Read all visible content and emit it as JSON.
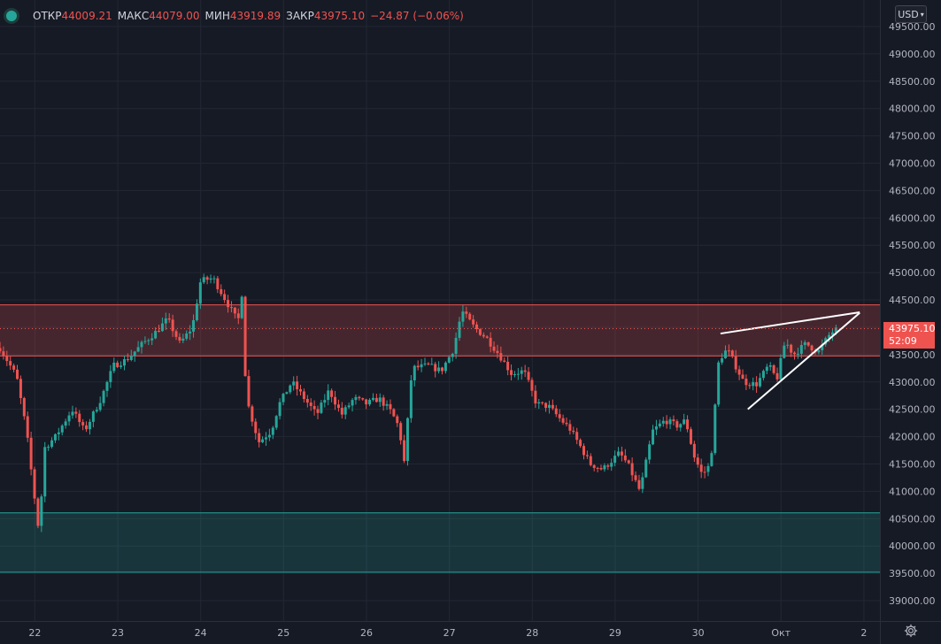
{
  "header": {
    "open_label": "ОТКР",
    "open_value": "44009.21",
    "high_label": "МАКС",
    "high_value": "44079.00",
    "low_label": "МИН",
    "low_value": "43919.89",
    "close_label": "ЗАКР",
    "close_value": "43975.10",
    "change": "−24.87 (−0.06%)"
  },
  "currency_button": "USD",
  "current_price": {
    "value": "43975.10",
    "countdown": "52:09"
  },
  "icons": {
    "status": "status-dot-icon",
    "currency": "chevron-down-icon",
    "settings": "gear-icon"
  },
  "colors": {
    "background": "#161a25",
    "up": "#26a69a",
    "down": "#ef5350",
    "resistance_zone": "#ef5350",
    "support_zone": "#26a69a",
    "trendline": "#ffffff"
  },
  "chart_data": {
    "type": "candlestick",
    "y_axis": {
      "min": 38800,
      "max": 49600,
      "ticks": [
        "39000.00",
        "39500.00",
        "40000.00",
        "40500.00",
        "41000.00",
        "41500.00",
        "42000.00",
        "42500.00",
        "43000.00",
        "43500.00",
        "44000.00",
        "44500.00",
        "45000.00",
        "45500.00",
        "46000.00",
        "46500.00",
        "47000.00",
        "47500.00",
        "48000.00",
        "48500.00",
        "49000.00",
        "49500.00"
      ]
    },
    "x_axis": {
      "labels": [
        "22",
        "23",
        "24",
        "25",
        "26",
        "27",
        "28",
        "29",
        "30",
        "Окт",
        "2"
      ],
      "start": 21.58,
      "end": 32.93
    },
    "grid": true,
    "zones": [
      {
        "name": "resistance",
        "from": 43475,
        "to": 44410
      },
      {
        "name": "support",
        "from": 39520,
        "to": 40605
      }
    ],
    "trendlines": [
      {
        "x1": 30.27,
        "y1": 43885,
        "x2": 31.95,
        "y2": 44275
      },
      {
        "x1": 30.6,
        "y1": 42500,
        "x2": 31.95,
        "y2": 44265
      }
    ],
    "anchors": [
      [
        21.58,
        43620
      ],
      [
        21.78,
        43100
      ],
      [
        21.9,
        42100
      ],
      [
        21.97,
        41200
      ],
      [
        22.05,
        40250
      ],
      [
        22.12,
        41800
      ],
      [
        22.25,
        42000
      ],
      [
        22.45,
        42500
      ],
      [
        22.6,
        42100
      ],
      [
        22.8,
        42700
      ],
      [
        22.95,
        43300
      ],
      [
        23.1,
        43400
      ],
      [
        23.3,
        43700
      ],
      [
        23.45,
        43900
      ],
      [
        23.6,
        44150
      ],
      [
        23.75,
        43700
      ],
      [
        23.9,
        44000
      ],
      [
        24.0,
        44850
      ],
      [
        24.15,
        44900
      ],
      [
        24.3,
        44500
      ],
      [
        24.45,
        44100
      ],
      [
        24.5,
        44650
      ],
      [
        24.55,
        42700
      ],
      [
        24.7,
        41900
      ],
      [
        24.85,
        42100
      ],
      [
        24.95,
        42600
      ],
      [
        25.1,
        43000
      ],
      [
        25.25,
        42700
      ],
      [
        25.4,
        42400
      ],
      [
        25.55,
        42850
      ],
      [
        25.7,
        42400
      ],
      [
        25.85,
        42700
      ],
      [
        26.0,
        42600
      ],
      [
        26.15,
        42700
      ],
      [
        26.3,
        42450
      ],
      [
        26.4,
        42150
      ],
      [
        26.45,
        41450
      ],
      [
        26.55,
        43250
      ],
      [
        26.75,
        43300
      ],
      [
        26.9,
        43200
      ],
      [
        27.05,
        43600
      ],
      [
        27.15,
        44300
      ],
      [
        27.3,
        44000
      ],
      [
        27.45,
        43800
      ],
      [
        27.6,
        43500
      ],
      [
        27.75,
        43150
      ],
      [
        27.9,
        43200
      ],
      [
        28.05,
        42600
      ],
      [
        28.2,
        42550
      ],
      [
        28.35,
        42300
      ],
      [
        28.45,
        42150
      ],
      [
        28.55,
        41900
      ],
      [
        28.7,
        41500
      ],
      [
        28.85,
        41400
      ],
      [
        28.95,
        41550
      ],
      [
        29.05,
        41700
      ],
      [
        29.15,
        41500
      ],
      [
        29.3,
        41000
      ],
      [
        29.45,
        42100
      ],
      [
        29.6,
        42300
      ],
      [
        29.75,
        42200
      ],
      [
        29.85,
        42300
      ],
      [
        29.95,
        41650
      ],
      [
        30.05,
        41300
      ],
      [
        30.15,
        41500
      ],
      [
        30.25,
        43400
      ],
      [
        30.35,
        43600
      ],
      [
        30.55,
        43000
      ],
      [
        30.7,
        42950
      ],
      [
        30.85,
        43300
      ],
      [
        30.95,
        43050
      ],
      [
        31.05,
        43750
      ],
      [
        31.15,
        43500
      ],
      [
        31.3,
        43700
      ],
      [
        31.45,
        43550
      ],
      [
        31.6,
        43900
      ],
      [
        31.7,
        43980
      ]
    ],
    "last_price": 43975.1
  }
}
